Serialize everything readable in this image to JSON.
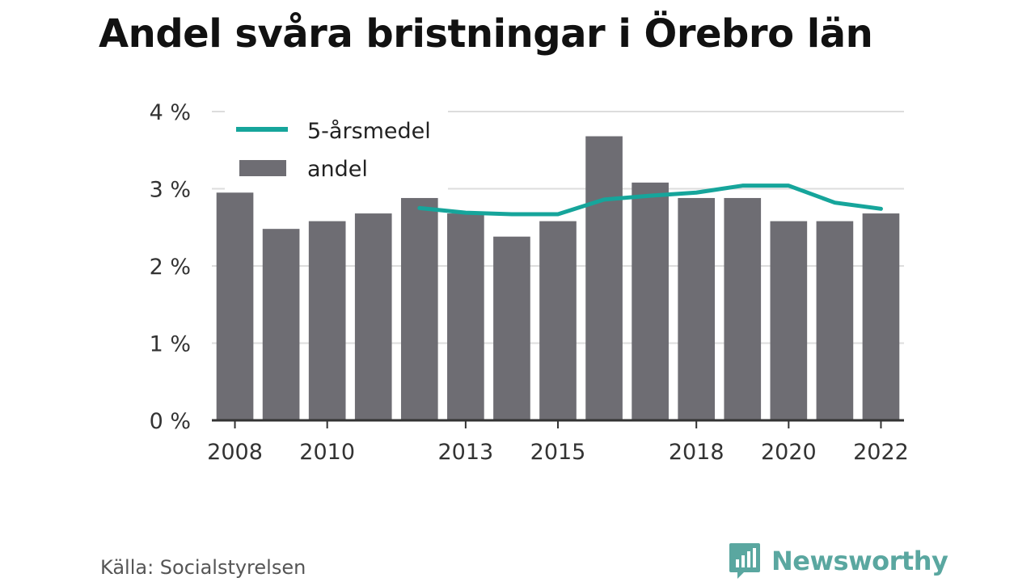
{
  "title": "Andel svåra bristningar i Örebro län",
  "source": "Källa: Socialstyrelsen",
  "brand": {
    "name": "Newsworthy",
    "icon": "newsworthy-logo-icon"
  },
  "colors": {
    "bar": "#6e6d73",
    "line": "#16a59b",
    "grid": "#dddddd",
    "axis": "#333333",
    "brand": "#5aa7a0"
  },
  "chart_data": {
    "type": "bar",
    "title": "Andel svåra bristningar i Örebro län",
    "xlabel": "",
    "ylabel": "",
    "categories": [
      "2008",
      "2009",
      "2010",
      "2011",
      "2012",
      "2013",
      "2014",
      "2015",
      "2016",
      "2017",
      "2018",
      "2019",
      "2020",
      "2021",
      "2022"
    ],
    "series": [
      {
        "name": "andel",
        "type": "bar",
        "values": [
          2.95,
          2.48,
          2.58,
          2.68,
          2.88,
          2.68,
          2.38,
          2.58,
          3.68,
          3.08,
          2.88,
          2.88,
          2.58,
          2.58,
          2.68
        ]
      },
      {
        "name": "5-årsmedel",
        "type": "line",
        "values": [
          null,
          null,
          null,
          null,
          2.75,
          2.69,
          2.67,
          2.67,
          2.86,
          2.91,
          2.95,
          3.04,
          3.04,
          2.82,
          2.74
        ]
      }
    ],
    "x_tick_labels": [
      "2008",
      "2010",
      "2013",
      "2015",
      "2018",
      "2020",
      "2022"
    ],
    "y_ticks": [
      0,
      1,
      2,
      3,
      4
    ],
    "y_tick_labels": [
      "0 %",
      "1 %",
      "2 %",
      "3 %",
      "4 %"
    ],
    "ylim": [
      0,
      4
    ],
    "grid": true,
    "legend": {
      "placement": "top-left",
      "entries": [
        "5-årsmedel",
        "andel"
      ]
    }
  }
}
